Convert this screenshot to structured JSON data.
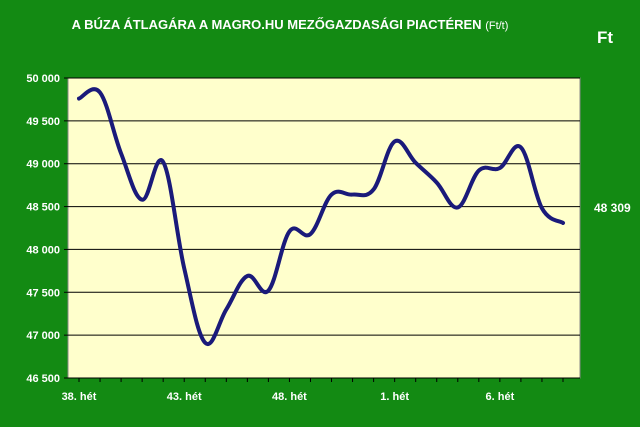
{
  "colors": {
    "background": "#138a13",
    "plot_area": "#ffffcc",
    "line": "#1a1a7a",
    "gridline": "#000000",
    "text": "#ffffff"
  },
  "header": {
    "title": "A BÚZA ÁTLAGÁRA A MAGRO.HU MEZŐGAZDASÁGI PIACTÉREN",
    "title_unit": "(Ft/t)",
    "unit_label": "Ft"
  },
  "chart_data": {
    "type": "line",
    "title": "A BÚZA ÁTLAGÁRA A MAGRO.HU MEZŐGAZDASÁGI PIACTÉREN (Ft/t)",
    "ylabel": "Ft",
    "ylim": [
      46500,
      50000
    ],
    "yticks": [
      50000,
      49500,
      49000,
      48500,
      48000,
      47500,
      47000,
      46500
    ],
    "ytick_labels": [
      "50 000",
      "49 500",
      "49 000",
      "48 500",
      "48 000",
      "47 500",
      "47 000",
      "46 500"
    ],
    "xtick_labels": [
      "38. hét",
      "43. hét",
      "48. hét",
      "1. hét",
      "6. hét"
    ],
    "xtick_positions": [
      0,
      5,
      10,
      15,
      20
    ],
    "grid": "horizontal",
    "x": [
      0,
      1,
      2,
      3,
      4,
      5,
      6,
      7,
      8,
      9,
      10,
      11,
      12,
      13,
      14,
      15,
      16,
      17,
      18,
      19,
      20,
      21,
      22,
      23
    ],
    "values": [
      49760,
      49830,
      49120,
      48580,
      49020,
      47780,
      46910,
      47300,
      47690,
      47520,
      48210,
      48180,
      48640,
      48640,
      48700,
      49260,
      49010,
      48780,
      48490,
      48920,
      48950,
      49190,
      48480,
      48309
    ],
    "last_value_label": "48 309"
  }
}
